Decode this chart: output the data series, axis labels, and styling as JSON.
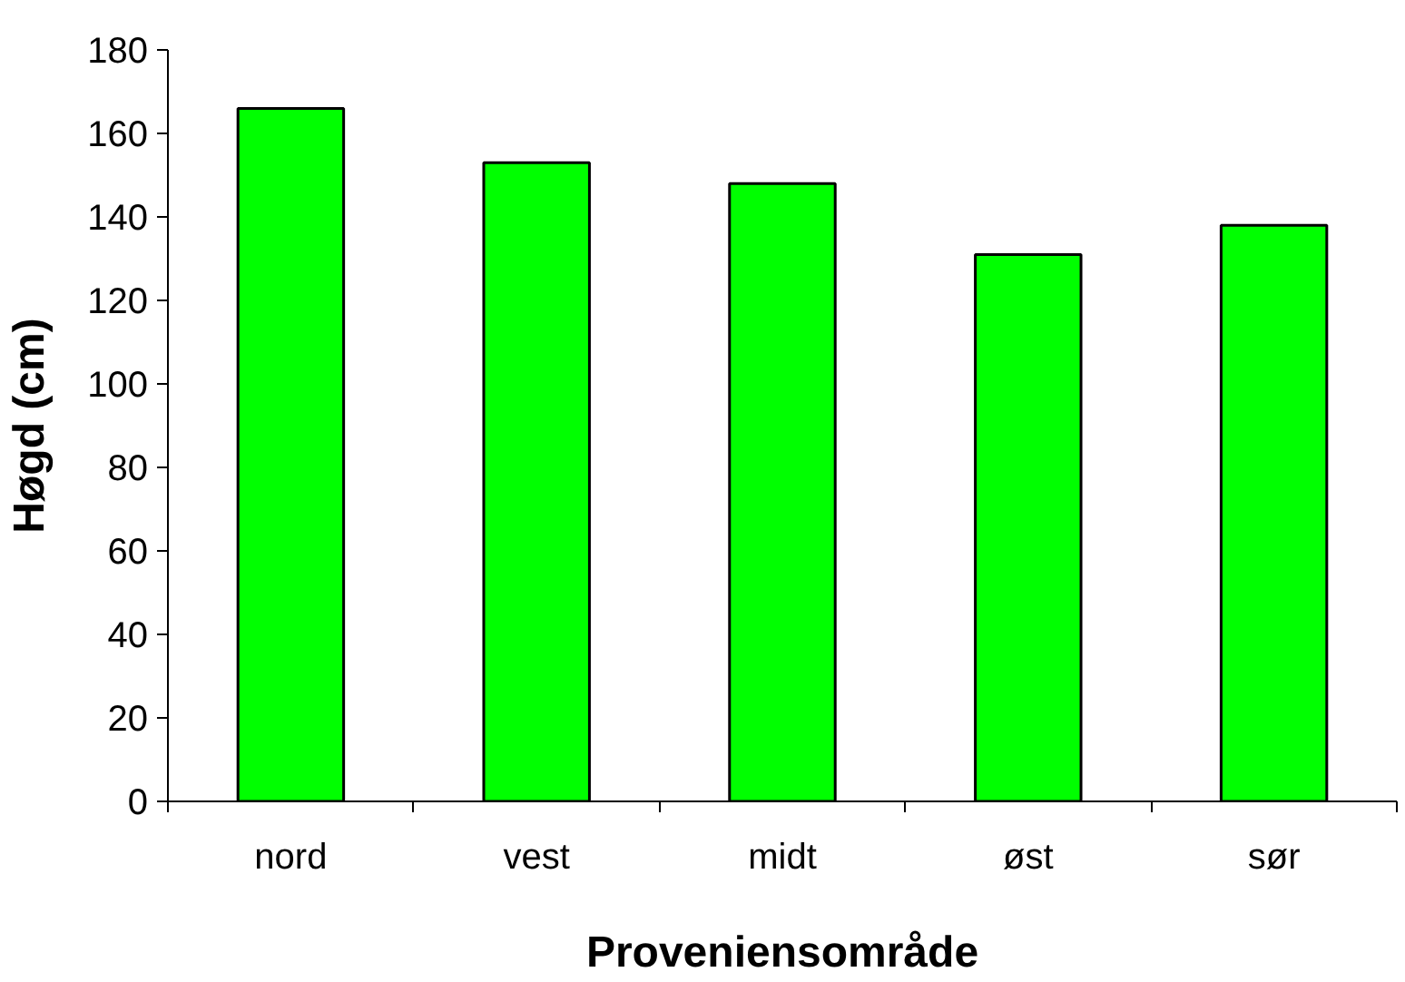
{
  "chart_data": {
    "type": "bar",
    "xlabel": "Proveniensområde",
    "ylabel": "Høgd (cm)",
    "categories": [
      "nord",
      "vest",
      "midt",
      "øst",
      "sør"
    ],
    "values": [
      166,
      153,
      148,
      131,
      138
    ],
    "color": "#00ff00",
    "ylim": [
      0,
      180
    ],
    "yticks": [
      0,
      20,
      40,
      60,
      80,
      100,
      120,
      140,
      160,
      180
    ],
    "grid": false
  }
}
